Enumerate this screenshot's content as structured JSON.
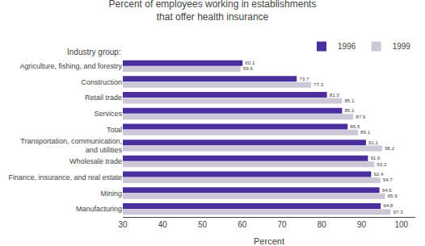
{
  "chart_data": {
    "type": "bar",
    "orientation": "horizontal",
    "title": "Percent of employees working in establishments\nthat offer health insurance",
    "x_label": "Percent",
    "annotations": [
      "Industry group:"
    ],
    "categories": [
      "Agriculture, fishing, and forestry",
      "Construction",
      "Retail trade",
      "Services",
      "Total",
      "Transportation, communication,\nand utilities",
      "Wholesale trade",
      "Finance, insurance, and real estate",
      "Mining",
      "Manufacturing"
    ],
    "series": [
      {
        "name": "1996",
        "color": "#4b2e9e",
        "values": [
          60.1,
          73.7,
          81.3,
          85.1,
          86.5,
          91.1,
          91.6,
          92.4,
          94.5,
          94.8
        ]
      },
      {
        "name": "1999",
        "color": "#ccc8d8",
        "values": [
          59.6,
          77.3,
          85.1,
          87.9,
          89.1,
          95.2,
          93.2,
          94.7,
          95.9,
          97.3
        ]
      }
    ],
    "xlim": [
      30,
      103.5
    ],
    "xticks": [
      30,
      40,
      50,
      60,
      70,
      80,
      90,
      100
    ],
    "data_labels": true,
    "legend": "upper right",
    "grid": false
  }
}
